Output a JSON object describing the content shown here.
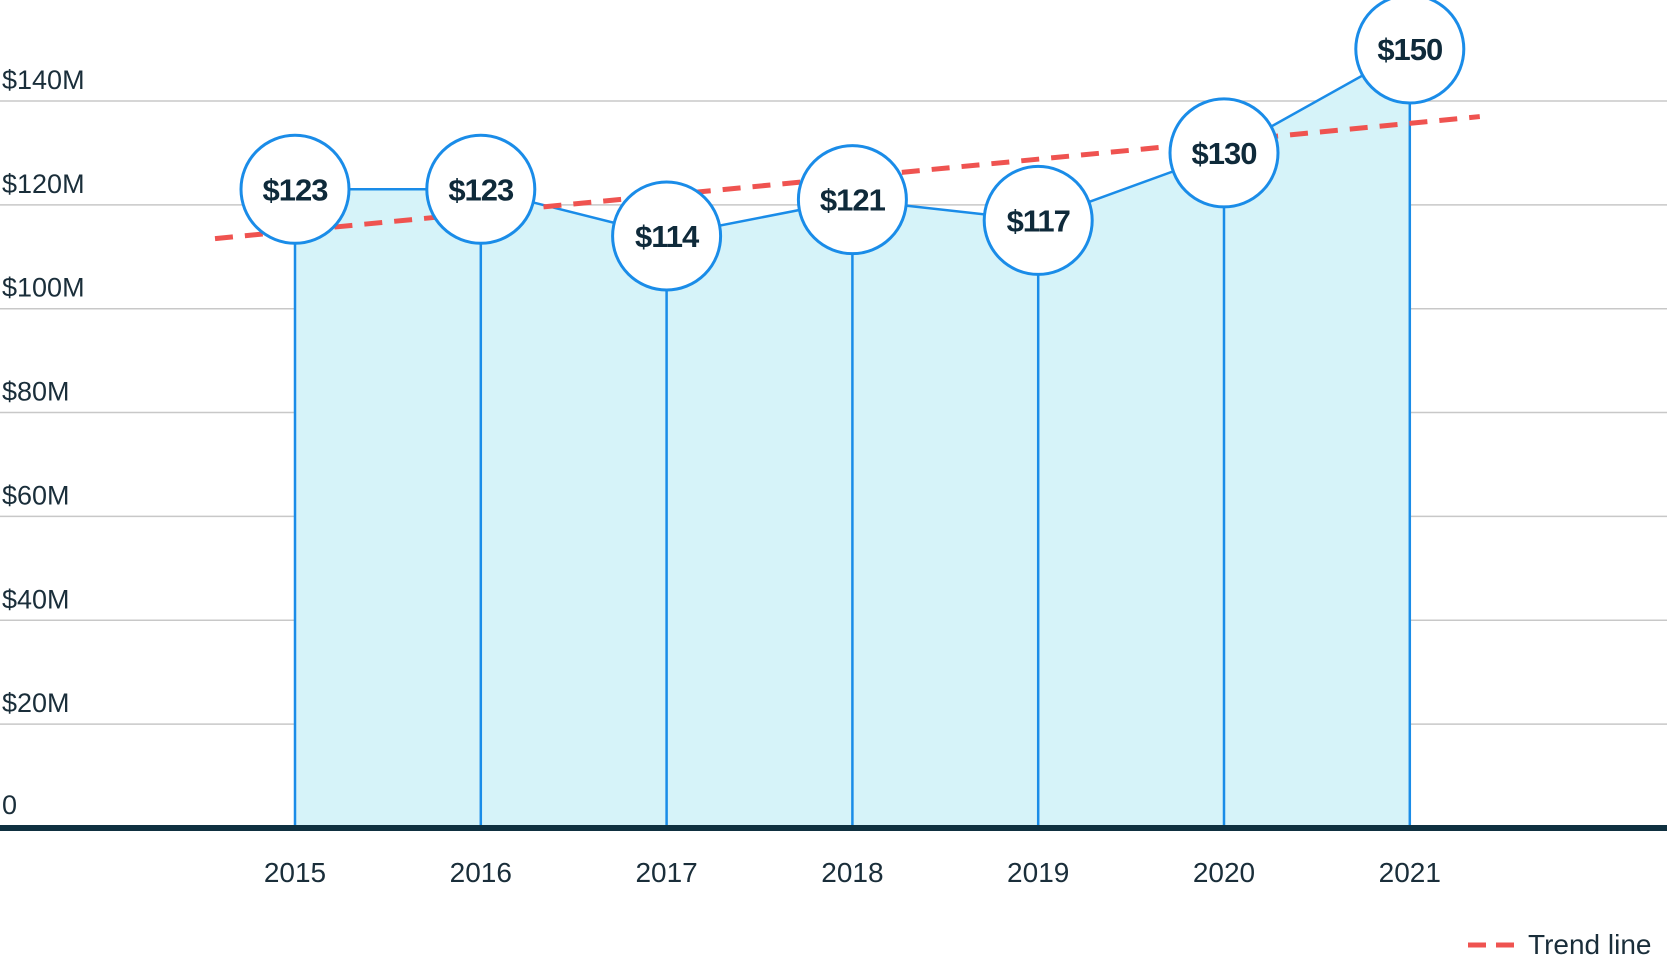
{
  "chart_data": {
    "type": "area",
    "categories": [
      "2015",
      "2016",
      "2017",
      "2018",
      "2019",
      "2020",
      "2021"
    ],
    "series": [
      {
        "values": [
          123,
          123,
          114,
          121,
          117,
          130,
          150
        ],
        "data_labels": [
          "$123",
          "$123",
          "$114",
          "$121",
          "$117",
          "$130",
          "$150"
        ]
      }
    ],
    "trend": {
      "name": "Trend line",
      "start": 113.5,
      "end": 137
    },
    "yticks": [
      0,
      20,
      40,
      60,
      80,
      100,
      120,
      140
    ],
    "ytick_labels": [
      "0",
      "$20M",
      "$40M",
      "$60M",
      "$80M",
      "$100M",
      "$120M",
      "$140M"
    ],
    "ylim": [
      0,
      155
    ],
    "grid": true,
    "legend_position": "bottom-right",
    "colors": {
      "area_fill": "#d6f3f9",
      "line": "#1a8ce8",
      "trend": "#ef5350",
      "baseline": "#0f3040",
      "grid": "#c8c8c8"
    }
  }
}
